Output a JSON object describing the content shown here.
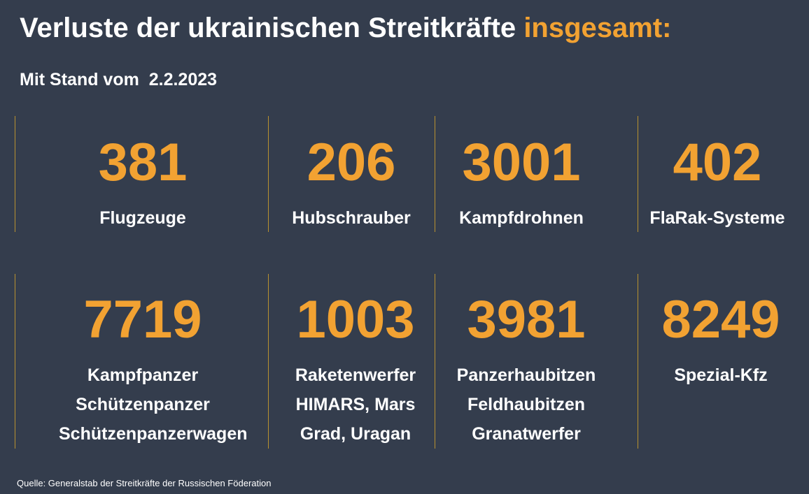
{
  "title": {
    "main": "Verluste der ukrainischen Streitkräfte",
    "accent": "insgesamt:"
  },
  "subtitle": "Mit Stand vom  2.2.2023",
  "stats": [
    {
      "value": "381",
      "labels": [
        "Flugzeuge"
      ]
    },
    {
      "value": "206",
      "labels": [
        "Hubschrauber"
      ]
    },
    {
      "value": "3001",
      "labels": [
        "Kampfdrohnen"
      ]
    },
    {
      "value": "402",
      "labels": [
        "FlaRak-Systeme"
      ]
    },
    {
      "value": "7719",
      "labels": [
        "Kampfpanzer",
        "Schützenpanzer",
        "Schützenpanzerwagen"
      ]
    },
    {
      "value": "1003",
      "labels": [
        "Raketenwerfer",
        "HIMARS, Mars",
        "Grad, Uragan"
      ]
    },
    {
      "value": "3981",
      "labels": [
        "Panzerhaubitzen",
        "Feldhaubitzen",
        "Granatwerfer"
      ]
    },
    {
      "value": "8249",
      "labels": [
        "Spezial-Kfz"
      ]
    }
  ],
  "source": "Quelle: Generalstab der Streitkräfte der Russischen Föderation",
  "colors": {
    "background": "#343d4d",
    "accent": "#f2a232",
    "text": "#ffffff",
    "divider": "#b8912f"
  }
}
